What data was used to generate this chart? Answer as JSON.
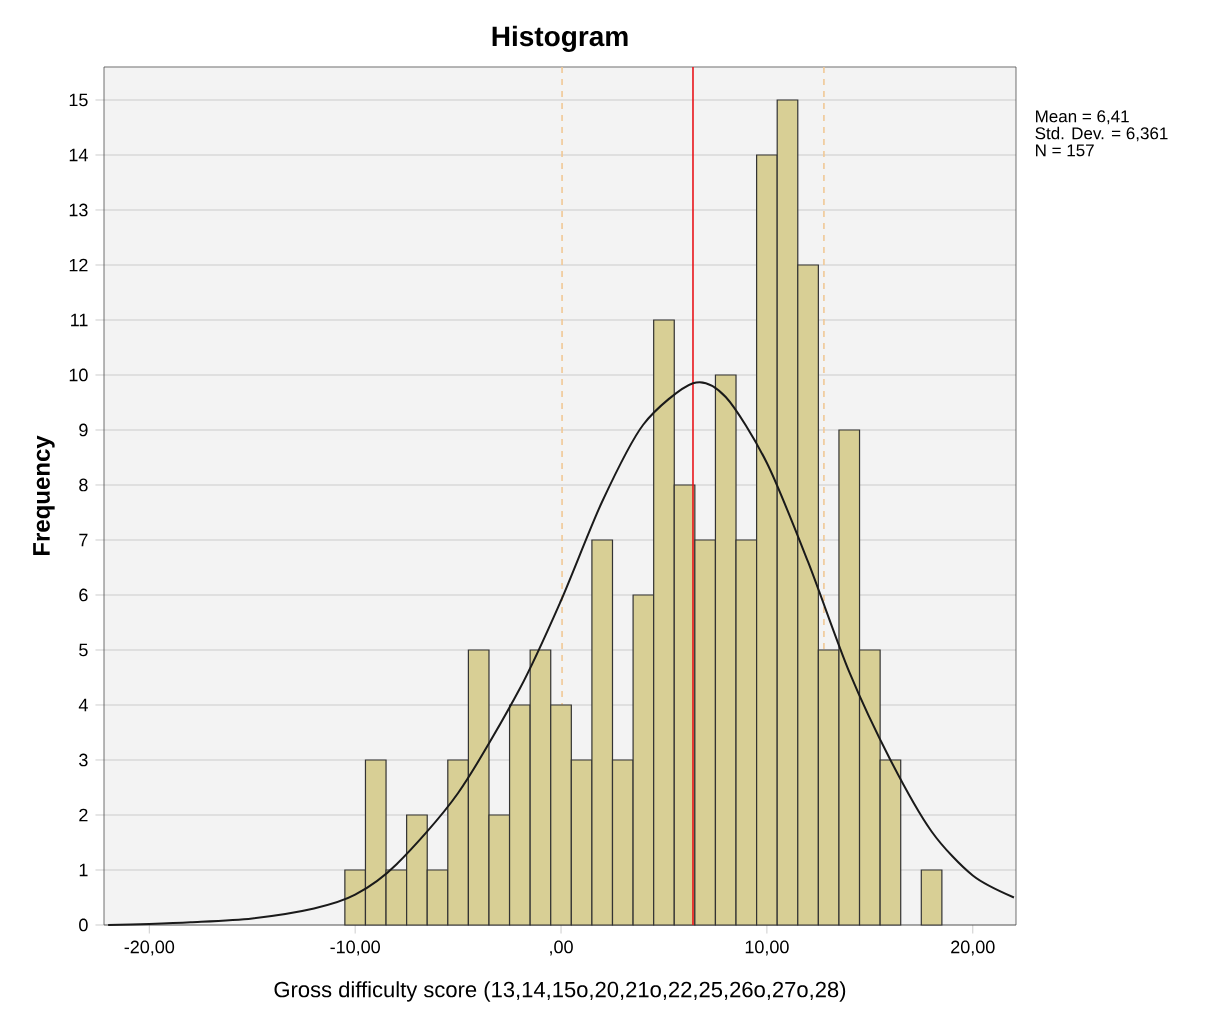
{
  "chart_data": {
    "type": "histogram",
    "title": "Histogram",
    "xlabel": "Gross difficulty score  (13,14,15o,20,21o,22,25,26o,27o,28)",
    "ylabel": "Frequency",
    "series": [
      {
        "color": "#d8cf95",
        "bins": [
          -10.5,
          -9.5,
          -8.5,
          -7.5,
          -6.5,
          -5.5,
          -4.5,
          -3.5,
          -2.5,
          -1.5,
          -0.5,
          0.5,
          1.5,
          2.5,
          3.5,
          4.5,
          5.5,
          6.5,
          7.5,
          8.5,
          9.5,
          10.5,
          11.5,
          12.5,
          13.5,
          14.5,
          15.5,
          16.5,
          17.5,
          18.5
        ],
        "values": [
          1,
          3,
          1,
          2,
          1,
          3,
          5,
          2,
          4,
          5,
          4,
          3,
          7,
          3,
          6,
          11,
          8,
          7,
          10,
          7,
          14,
          15,
          12,
          5,
          9,
          5,
          3,
          0,
          1
        ]
      },
      {
        "type": "line",
        "color": "#1a1a1a",
        "x": [
          -22,
          -20,
          -18,
          -15,
          -12,
          -10,
          -8,
          -5,
          -2,
          0,
          2,
          4,
          6.41,
          8,
          10,
          12,
          14,
          16,
          18,
          20,
          22
        ],
        "values": [
          0.0,
          0.02,
          0.05,
          0.12,
          0.3,
          0.55,
          1.1,
          2.4,
          4.3,
          5.9,
          7.7,
          9.1,
          9.85,
          9.6,
          8.4,
          6.6,
          4.6,
          3.0,
          1.7,
          0.9,
          0.5
        ]
      }
    ],
    "ref_lines": [
      {
        "axis": "x",
        "value": 0.05,
        "color": "#f0c896",
        "line_style": "dashed"
      },
      {
        "axis": "x",
        "value": 12.77,
        "color": "#f0c896",
        "line_style": "dashed"
      },
      {
        "axis": "x",
        "value": 6.41,
        "color": "#e8151b",
        "line_style": "solid"
      }
    ],
    "xlim": [
      -22.2,
      22.1
    ],
    "ylim": [
      0,
      15.6
    ],
    "xticks": [
      {
        "value": -20,
        "label": "-20,00"
      },
      {
        "value": -10,
        "label": "-10,00"
      },
      {
        "value": 0,
        "label": ",00"
      },
      {
        "value": 10,
        "label": "10,00"
      },
      {
        "value": 20,
        "label": "20,00"
      }
    ],
    "yticks": [
      0,
      1,
      2,
      3,
      4,
      5,
      6,
      7,
      8,
      9,
      10,
      11,
      12,
      13,
      14,
      15
    ],
    "grid": "y",
    "annotations": [
      "Mean = 6,41",
      "Std. Dev. = 6,361",
      "N = 157"
    ]
  }
}
